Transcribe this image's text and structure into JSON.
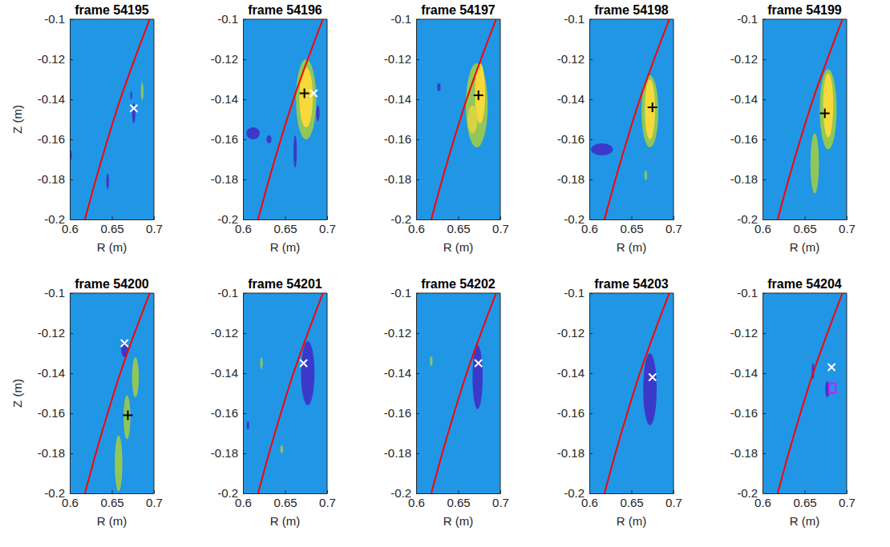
{
  "chart_data": [
    {
      "type": "heatmap",
      "title": "frame 54195",
      "x_label": "R (m)",
      "y_label": "Z (m)",
      "xlim": [
        0.6,
        0.7
      ],
      "ylim": [
        -0.2,
        -0.1
      ],
      "xticks": [
        0.6,
        0.65,
        0.7
      ],
      "yticks": [
        -0.2,
        -0.18,
        -0.16,
        -0.14,
        -0.12,
        -0.1
      ],
      "clim": [
        -1,
        1
      ],
      "background": 0,
      "blobs": [
        {
          "r": 0.676,
          "z": -0.147,
          "width": 0.004,
          "height": 0.01,
          "value": -0.9
        },
        {
          "r": 0.686,
          "z": -0.136,
          "width": 0.003,
          "height": 0.009,
          "value": 0.55
        },
        {
          "r": 0.601,
          "z": -0.168,
          "width": 0.003,
          "height": 0.005,
          "value": -0.9
        },
        {
          "r": 0.645,
          "z": -0.181,
          "width": 0.003,
          "height": 0.008,
          "value": -0.9
        },
        {
          "r": 0.673,
          "z": -0.138,
          "width": 0.002,
          "height": 0.004,
          "value": -0.9
        }
      ],
      "series": [
        {
          "type": "line",
          "color": "red",
          "line_style": "solid",
          "x": [
            0.618,
            0.631,
            0.645,
            0.66,
            0.677,
            0.695
          ],
          "values": [
            -0.2,
            -0.18,
            -0.16,
            -0.14,
            -0.12,
            -0.1
          ]
        },
        {
          "type": "scatter",
          "marker": "x",
          "color": "white",
          "x": [
            0.676
          ],
          "values": [
            -0.1445
          ]
        }
      ]
    },
    {
      "type": "heatmap",
      "title": "frame 54196",
      "x_label": "R (m)",
      "xlim": [
        0.6,
        0.7
      ],
      "ylim": [
        -0.2,
        -0.1
      ],
      "xticks": [
        0.6,
        0.65,
        0.7
      ],
      "yticks": [
        -0.2,
        -0.18,
        -0.16,
        -0.14,
        -0.12,
        -0.1
      ],
      "clim": [
        -1,
        1
      ],
      "background": 0,
      "blobs": [
        {
          "r": 0.675,
          "z": -0.14,
          "width": 0.024,
          "height": 0.04,
          "value": 0.55
        },
        {
          "r": 0.675,
          "z": -0.139,
          "width": 0.016,
          "height": 0.03,
          "value": 1
        },
        {
          "r": 0.612,
          "z": -0.157,
          "width": 0.016,
          "height": 0.006,
          "value": -0.9
        },
        {
          "r": 0.662,
          "z": -0.166,
          "width": 0.004,
          "height": 0.016,
          "value": -0.9
        },
        {
          "r": 0.689,
          "z": -0.147,
          "width": 0.004,
          "height": 0.008,
          "value": -0.9
        },
        {
          "r": 0.631,
          "z": -0.16,
          "width": 0.006,
          "height": 0.004,
          "value": -0.9
        }
      ],
      "series": [
        {
          "type": "line",
          "color": "red",
          "line_style": "solid",
          "x": [
            0.618,
            0.631,
            0.645,
            0.66,
            0.677,
            0.695
          ],
          "values": [
            -0.2,
            -0.18,
            -0.16,
            -0.14,
            -0.12,
            -0.1
          ]
        },
        {
          "type": "scatter",
          "marker": "+",
          "color": "black",
          "x": [
            0.673
          ],
          "values": [
            -0.137
          ]
        },
        {
          "type": "scatter",
          "marker": "x",
          "color": "white",
          "x": [
            0.684
          ],
          "values": [
            -0.137
          ]
        }
      ]
    },
    {
      "type": "heatmap",
      "title": "frame 54197",
      "x_label": "R (m)",
      "xlim": [
        0.6,
        0.7
      ],
      "ylim": [
        -0.2,
        -0.1
      ],
      "xticks": [
        0.6,
        0.65,
        0.7
      ],
      "yticks": [
        -0.2,
        -0.18,
        -0.16,
        -0.14,
        -0.12,
        -0.1
      ],
      "clim": [
        -1,
        1
      ],
      "background": 0,
      "blobs": [
        {
          "r": 0.672,
          "z": -0.143,
          "width": 0.026,
          "height": 0.042,
          "value": 0.55
        },
        {
          "r": 0.676,
          "z": -0.137,
          "width": 0.012,
          "height": 0.03,
          "value": 1
        },
        {
          "r": 0.667,
          "z": -0.15,
          "width": 0.012,
          "height": 0.014,
          "value": 0.85
        },
        {
          "r": 0.627,
          "z": -0.134,
          "width": 0.004,
          "height": 0.004,
          "value": -0.9
        }
      ],
      "series": [
        {
          "type": "line",
          "color": "red",
          "line_style": "solid",
          "x": [
            0.618,
            0.631,
            0.645,
            0.66,
            0.677,
            0.695
          ],
          "values": [
            -0.2,
            -0.18,
            -0.16,
            -0.14,
            -0.12,
            -0.1
          ]
        },
        {
          "type": "scatter",
          "marker": "+",
          "color": "black",
          "x": [
            0.674
          ],
          "values": [
            -0.138
          ]
        }
      ]
    },
    {
      "type": "heatmap",
      "title": "frame 54198",
      "x_label": "R (m)",
      "xlim": [
        0.6,
        0.7
      ],
      "ylim": [
        -0.2,
        -0.1
      ],
      "xticks": [
        0.6,
        0.65,
        0.7
      ],
      "yticks": [
        -0.2,
        -0.18,
        -0.16,
        -0.14,
        -0.12,
        -0.1
      ],
      "clim": [
        -1,
        1
      ],
      "background": 0,
      "blobs": [
        {
          "r": 0.672,
          "z": -0.146,
          "width": 0.02,
          "height": 0.036,
          "value": 0.55
        },
        {
          "r": 0.672,
          "z": -0.145,
          "width": 0.012,
          "height": 0.03,
          "value": 1
        },
        {
          "r": 0.615,
          "z": -0.165,
          "width": 0.026,
          "height": 0.006,
          "value": -0.9
        },
        {
          "r": 0.667,
          "z": -0.178,
          "width": 0.003,
          "height": 0.005,
          "value": 0.55
        }
      ],
      "series": [
        {
          "type": "line",
          "color": "red",
          "line_style": "solid",
          "x": [
            0.618,
            0.631,
            0.645,
            0.66,
            0.677,
            0.695
          ],
          "values": [
            -0.2,
            -0.18,
            -0.16,
            -0.14,
            -0.12,
            -0.1
          ]
        },
        {
          "type": "scatter",
          "marker": "+",
          "color": "black",
          "x": [
            0.675
          ],
          "values": [
            -0.144
          ]
        }
      ]
    },
    {
      "type": "heatmap",
      "title": "frame 54199",
      "x_label": "R (m)",
      "xlim": [
        0.6,
        0.7
      ],
      "ylim": [
        -0.2,
        -0.1
      ],
      "xticks": [
        0.6,
        0.65,
        0.7
      ],
      "yticks": [
        -0.2,
        -0.18,
        -0.16,
        -0.14,
        -0.12,
        -0.1
      ],
      "clim": [
        -1,
        1
      ],
      "background": 0,
      "blobs": [
        {
          "r": 0.662,
          "z": -0.172,
          "width": 0.01,
          "height": 0.03,
          "value": 0.55
        },
        {
          "r": 0.678,
          "z": -0.145,
          "width": 0.02,
          "height": 0.04,
          "value": 0.55
        },
        {
          "r": 0.678,
          "z": -0.143,
          "width": 0.012,
          "height": 0.032,
          "value": 1
        }
      ],
      "series": [
        {
          "type": "line",
          "color": "red",
          "line_style": "solid",
          "x": [
            0.618,
            0.631,
            0.645,
            0.66,
            0.677,
            0.695
          ],
          "values": [
            -0.2,
            -0.18,
            -0.16,
            -0.14,
            -0.12,
            -0.1
          ]
        },
        {
          "type": "scatter",
          "marker": "+",
          "color": "black",
          "x": [
            0.674
          ],
          "values": [
            -0.147
          ]
        }
      ]
    },
    {
      "type": "heatmap",
      "title": "frame 54200",
      "x_label": "R (m)",
      "y_label": "Z (m)",
      "xlim": [
        0.6,
        0.7
      ],
      "ylim": [
        -0.2,
        -0.1
      ],
      "xticks": [
        0.6,
        0.65,
        0.7
      ],
      "yticks": [
        -0.2,
        -0.18,
        -0.16,
        -0.14,
        -0.12,
        -0.1
      ],
      "clim": [
        -1,
        1
      ],
      "background": 0,
      "blobs": [
        {
          "r": 0.665,
          "z": -0.128,
          "width": 0.008,
          "height": 0.008,
          "value": -0.9
        },
        {
          "r": 0.678,
          "z": -0.142,
          "width": 0.008,
          "height": 0.02,
          "value": 0.55
        },
        {
          "r": 0.668,
          "z": -0.162,
          "width": 0.008,
          "height": 0.022,
          "value": 0.55
        },
        {
          "r": 0.658,
          "z": -0.185,
          "width": 0.009,
          "height": 0.028,
          "value": 0.55
        }
      ],
      "series": [
        {
          "type": "line",
          "color": "red",
          "line_style": "solid",
          "x": [
            0.618,
            0.631,
            0.645,
            0.66,
            0.677,
            0.695
          ],
          "values": [
            -0.2,
            -0.18,
            -0.16,
            -0.14,
            -0.12,
            -0.1
          ]
        },
        {
          "type": "scatter",
          "marker": "x",
          "color": "white",
          "x": [
            0.665
          ],
          "values": [
            -0.125
          ]
        },
        {
          "type": "scatter",
          "marker": "+",
          "color": "black",
          "x": [
            0.669
          ],
          "values": [
            -0.161
          ]
        }
      ]
    },
    {
      "type": "heatmap",
      "title": "frame 54201",
      "x_label": "R (m)",
      "xlim": [
        0.6,
        0.7
      ],
      "ylim": [
        -0.2,
        -0.1
      ],
      "xticks": [
        0.6,
        0.65,
        0.7
      ],
      "yticks": [
        -0.2,
        -0.18,
        -0.16,
        -0.14,
        -0.12,
        -0.1
      ],
      "clim": [
        -1,
        1
      ],
      "background": 0,
      "blobs": [
        {
          "r": 0.677,
          "z": -0.14,
          "width": 0.016,
          "height": 0.032,
          "value": -0.9
        },
        {
          "r": 0.622,
          "z": -0.135,
          "width": 0.003,
          "height": 0.006,
          "value": 0.55
        },
        {
          "r": 0.646,
          "z": -0.178,
          "width": 0.003,
          "height": 0.004,
          "value": 0.55
        },
        {
          "r": 0.606,
          "z": -0.166,
          "width": 0.003,
          "height": 0.004,
          "value": -0.9
        }
      ],
      "series": [
        {
          "type": "line",
          "color": "red",
          "line_style": "solid",
          "x": [
            0.618,
            0.631,
            0.645,
            0.66,
            0.677,
            0.695
          ],
          "values": [
            -0.2,
            -0.18,
            -0.16,
            -0.14,
            -0.12,
            -0.1
          ]
        },
        {
          "type": "scatter",
          "marker": "x",
          "color": "white",
          "x": [
            0.672
          ],
          "values": [
            -0.135
          ]
        }
      ]
    },
    {
      "type": "heatmap",
      "title": "frame 54202",
      "x_label": "R (m)",
      "xlim": [
        0.6,
        0.7
      ],
      "ylim": [
        -0.2,
        -0.1
      ],
      "xticks": [
        0.6,
        0.65,
        0.7
      ],
      "yticks": [
        -0.2,
        -0.18,
        -0.16,
        -0.14,
        -0.12,
        -0.1
      ],
      "clim": [
        -1,
        1
      ],
      "background": 0,
      "blobs": [
        {
          "r": 0.673,
          "z": -0.142,
          "width": 0.012,
          "height": 0.032,
          "value": -0.9
        },
        {
          "r": 0.618,
          "z": -0.134,
          "width": 0.003,
          "height": 0.005,
          "value": 0.55
        }
      ],
      "series": [
        {
          "type": "line",
          "color": "red",
          "line_style": "solid",
          "x": [
            0.618,
            0.631,
            0.645,
            0.66,
            0.677,
            0.695
          ],
          "values": [
            -0.2,
            -0.18,
            -0.16,
            -0.14,
            -0.12,
            -0.1
          ]
        },
        {
          "type": "scatter",
          "marker": "x",
          "color": "white",
          "x": [
            0.674
          ],
          "values": [
            -0.135
          ]
        }
      ]
    },
    {
      "type": "heatmap",
      "title": "frame 54203",
      "x_label": "R (m)",
      "xlim": [
        0.6,
        0.7
      ],
      "ylim": [
        -0.2,
        -0.1
      ],
      "xticks": [
        0.6,
        0.65,
        0.7
      ],
      "yticks": [
        -0.2,
        -0.18,
        -0.16,
        -0.14,
        -0.12,
        -0.1
      ],
      "clim": [
        -1,
        1
      ],
      "background": 0,
      "blobs": [
        {
          "r": 0.672,
          "z": -0.148,
          "width": 0.016,
          "height": 0.036,
          "value": -0.9
        }
      ],
      "series": [
        {
          "type": "line",
          "color": "red",
          "line_style": "solid",
          "x": [
            0.618,
            0.631,
            0.645,
            0.66,
            0.677,
            0.695
          ],
          "values": [
            -0.2,
            -0.18,
            -0.16,
            -0.14,
            -0.12,
            -0.1
          ]
        },
        {
          "type": "scatter",
          "marker": "x",
          "color": "white",
          "x": [
            0.675
          ],
          "values": [
            -0.142
          ]
        }
      ]
    },
    {
      "type": "heatmap",
      "title": "frame 54204",
      "x_label": "R (m)",
      "xlim": [
        0.6,
        0.7
      ],
      "ylim": [
        -0.2,
        -0.1
      ],
      "xticks": [
        0.6,
        0.65,
        0.7
      ],
      "yticks": [
        -0.2,
        -0.18,
        -0.16,
        -0.14,
        -0.12,
        -0.1
      ],
      "clim": [
        -1,
        1
      ],
      "background": 0,
      "blobs": [
        {
          "r": 0.677,
          "z": -0.148,
          "width": 0.005,
          "height": 0.008,
          "value": -0.9
        },
        {
          "r": 0.66,
          "z": -0.139,
          "width": 0.003,
          "height": 0.008,
          "value": -0.9
        }
      ],
      "series": [
        {
          "type": "line",
          "color": "red",
          "line_style": "solid",
          "x": [
            0.618,
            0.631,
            0.645,
            0.66,
            0.677,
            0.695
          ],
          "values": [
            -0.2,
            -0.18,
            -0.16,
            -0.14,
            -0.12,
            -0.1
          ]
        },
        {
          "type": "scatter",
          "marker": "x",
          "color": "white",
          "x": [
            0.682
          ],
          "values": [
            -0.137
          ]
        },
        {
          "type": "scatter",
          "marker": "square",
          "color": "magenta",
          "x": [
            0.683
          ],
          "values": [
            -0.1475
          ]
        }
      ]
    }
  ]
}
